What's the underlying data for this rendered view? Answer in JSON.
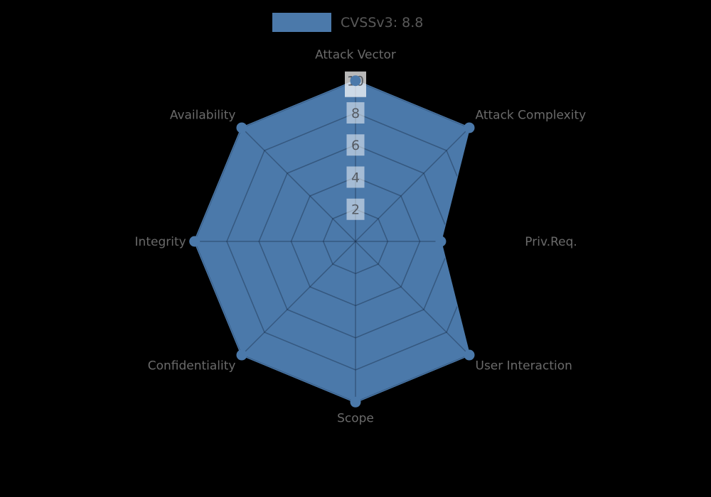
{
  "chart_data": {
    "type": "radar",
    "legend_label": "CVSSv3: 8.8",
    "score": 8.8,
    "axes": [
      "Attack Vector",
      "Attack Complexity",
      "Priv.Req.",
      "User Interaction",
      "Scope",
      "Confidentiality",
      "Integrity",
      "Availability"
    ],
    "values": [
      10,
      10,
      5.3,
      10,
      10,
      10,
      10,
      10
    ],
    "radial_ticks": [
      2,
      4,
      6,
      8,
      10
    ],
    "rmax": 10,
    "grid": true,
    "legend_position": "top-center",
    "colors": {
      "series": "#4b79aa",
      "grid_line": "rgba(18,34,58,0.38)",
      "tick_text": "#555b63",
      "tick_box": "rgba(255,255,255,0.50)",
      "tick_box_max": "rgba(255,255,255,0.72)",
      "axis_label_text": "#6a6a6a",
      "legend_text": "#595959",
      "background": "#000000"
    }
  }
}
